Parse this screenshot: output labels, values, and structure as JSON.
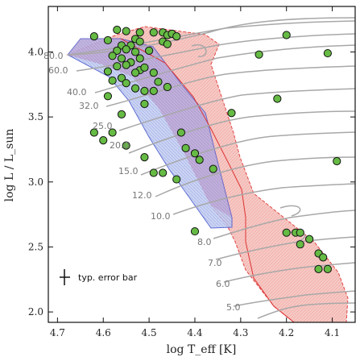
{
  "chart_data": {
    "type": "scatter",
    "title": "",
    "xlabel": "log T_eff [K]",
    "ylabel": "log L / L_sun",
    "xlim": [
      4.72,
      4.05
    ],
    "ylim": [
      1.92,
      4.35
    ],
    "x_inverted": true,
    "x_ticks": [
      4.7,
      4.6,
      4.5,
      4.4,
      4.3,
      4.2,
      4.1
    ],
    "x_tick_labels": [
      "4.7",
      "4.6",
      "4.5",
      "4.4",
      "4.3",
      "4.2",
      "4.1"
    ],
    "y_ticks": [
      2.0,
      2.5,
      3.0,
      3.5,
      4.0
    ],
    "y_tick_labels": [
      "2.0",
      "2.5",
      "3.0",
      "3.5",
      "4.0"
    ],
    "grid": false,
    "colors": {
      "points_fill": "#66bb44",
      "points_edge": "#111111",
      "tracks": "#aaaaaa",
      "red_region": "#f4b6b0",
      "red_edge": "#dd3333",
      "blue_region": "#b7c3ee",
      "blue_edge": "#4455cc",
      "purple_overlap": "#c8a4cc"
    },
    "mass_labels": [
      "80.0",
      "60.0",
      "40.0",
      "32.0",
      "25.0",
      "20.0",
      "15.0",
      "12.0",
      "10.0",
      "8.0",
      "7.0",
      "6.0",
      "5.0"
    ],
    "annotation": "typ. error bar",
    "series": [
      {
        "points": [
          [
            4.57,
            4.17
          ],
          [
            4.55,
            4.16
          ],
          [
            4.52,
            4.15
          ],
          [
            4.49,
            4.15
          ],
          [
            4.47,
            4.15
          ],
          [
            4.46,
            4.13
          ],
          [
            4.45,
            4.14
          ],
          [
            4.44,
            4.12
          ],
          [
            4.47,
            4.08
          ],
          [
            4.46,
            4.06
          ],
          [
            4.59,
            4.09
          ],
          [
            4.62,
            4.12
          ],
          [
            4.53,
            4.1
          ],
          [
            4.52,
            4.08
          ],
          [
            4.54,
            4.05
          ],
          [
            4.56,
            4.05
          ],
          [
            4.55,
            4.02
          ],
          [
            4.57,
            4.01
          ],
          [
            4.53,
            4.0
          ],
          [
            4.58,
            3.97
          ],
          [
            4.56,
            3.95
          ],
          [
            4.52,
            3.95
          ],
          [
            4.54,
            3.92
          ],
          [
            4.55,
            3.9
          ],
          [
            4.57,
            3.89
          ],
          [
            4.52,
            3.86
          ],
          [
            4.53,
            3.84
          ],
          [
            4.56,
            3.8
          ],
          [
            4.59,
            3.85
          ],
          [
            4.58,
            3.78
          ],
          [
            4.55,
            3.76
          ],
          [
            4.53,
            3.72
          ],
          [
            4.51,
            3.7
          ],
          [
            4.5,
            4.01
          ],
          [
            4.51,
            3.88
          ],
          [
            4.49,
            3.84
          ],
          [
            4.48,
            3.77
          ],
          [
            4.46,
            3.73
          ],
          [
            4.49,
            3.7
          ],
          [
            4.51,
            3.6
          ],
          [
            4.59,
            3.66
          ],
          [
            4.56,
            3.52
          ],
          [
            4.62,
            3.38
          ],
          [
            4.6,
            3.32
          ],
          [
            4.58,
            3.38
          ],
          [
            4.55,
            3.28
          ],
          [
            4.51,
            3.19
          ],
          [
            4.49,
            3.07
          ],
          [
            4.47,
            3.07
          ],
          [
            4.44,
            3.02
          ],
          [
            4.43,
            3.38
          ],
          [
            4.42,
            3.26
          ],
          [
            4.4,
            3.22
          ],
          [
            4.39,
            3.17
          ],
          [
            4.36,
            3.1
          ],
          [
            4.4,
            2.62
          ],
          [
            4.32,
            3.53
          ],
          [
            4.22,
            3.64
          ],
          [
            4.2,
            4.13
          ],
          [
            4.26,
            3.98
          ],
          [
            4.11,
            3.99
          ],
          [
            4.09,
            3.16
          ],
          [
            4.2,
            2.61
          ],
          [
            4.18,
            2.61
          ],
          [
            4.17,
            2.61
          ],
          [
            4.15,
            2.56
          ],
          [
            4.13,
            2.45
          ],
          [
            4.12,
            2.42
          ],
          [
            4.13,
            2.33
          ],
          [
            4.11,
            2.33
          ],
          [
            4.17,
            2.52
          ]
        ]
      }
    ]
  }
}
